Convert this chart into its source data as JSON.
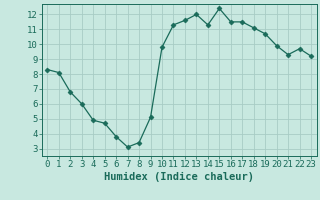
{
  "x": [
    0,
    1,
    2,
    3,
    4,
    5,
    6,
    7,
    8,
    9,
    10,
    11,
    12,
    13,
    14,
    15,
    16,
    17,
    18,
    19,
    20,
    21,
    22,
    23
  ],
  "y": [
    8.3,
    8.1,
    6.8,
    6.0,
    4.9,
    4.7,
    3.8,
    3.1,
    3.4,
    5.1,
    9.8,
    11.3,
    11.6,
    12.0,
    11.3,
    12.4,
    11.5,
    11.5,
    11.1,
    10.7,
    9.9,
    9.3,
    9.7,
    9.2
  ],
  "line_color": "#1a6b5a",
  "marker": "D",
  "marker_size": 2.5,
  "bg_color": "#c8e8e0",
  "grid_color": "#a8ccc5",
  "xlabel": "Humidex (Indice chaleur)",
  "xlim": [
    -0.5,
    23.5
  ],
  "ylim": [
    2.5,
    12.7
  ],
  "yticks": [
    3,
    4,
    5,
    6,
    7,
    8,
    9,
    10,
    11,
    12
  ],
  "xticks": [
    0,
    1,
    2,
    3,
    4,
    5,
    6,
    7,
    8,
    9,
    10,
    11,
    12,
    13,
    14,
    15,
    16,
    17,
    18,
    19,
    20,
    21,
    22,
    23
  ],
  "tick_color": "#1a6b5a",
  "label_fontsize": 6.5,
  "xlabel_fontsize": 7.5
}
